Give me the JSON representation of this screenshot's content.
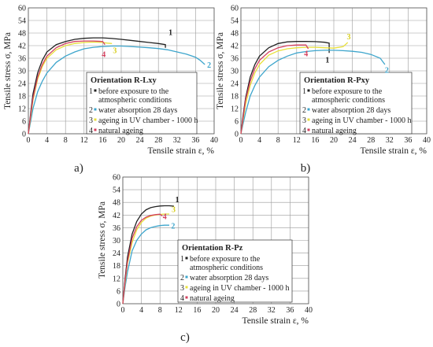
{
  "chart_data": [
    {
      "type": "line",
      "panel_label": "a)",
      "xlabel": "Tensile strain ε, %",
      "ylabel": "Tensile stress σ, MPa",
      "xlim": [
        0,
        40
      ],
      "ylim": [
        0,
        60
      ],
      "x_ticks": [
        0,
        4,
        8,
        12,
        16,
        20,
        24,
        28,
        32,
        36,
        40
      ],
      "y_ticks": [
        0,
        6,
        12,
        18,
        24,
        30,
        36,
        42,
        48,
        54,
        60
      ],
      "grid": true,
      "legend_title": "Orientation R-Lxy",
      "legend": [
        {
          "number": "1",
          "text": [
            "before exposure to the",
            "atmospheric conditions"
          ]
        },
        {
          "number": "2",
          "text": [
            "water absorption 28 days"
          ]
        },
        {
          "number": "3",
          "text": [
            "ageing in UV chamber - 1000 h"
          ]
        },
        {
          "number": "4",
          "text": [
            "natural ageing"
          ]
        }
      ],
      "series": [
        {
          "label": "1",
          "color": "#222222",
          "x": [
            0,
            0.5,
            1,
            2,
            3,
            4,
            6,
            8,
            10,
            12,
            14,
            16,
            18,
            20,
            22,
            24,
            26,
            28,
            29.5,
            29.5
          ],
          "y": [
            0,
            10,
            19,
            29,
            35,
            39,
            42.5,
            44,
            45,
            45.5,
            45.7,
            45.7,
            45.4,
            45,
            44.5,
            44,
            43.5,
            43,
            42.5,
            41
          ]
        },
        {
          "label": "2",
          "color": "#3da5cc",
          "x": [
            0,
            0.5,
            1,
            2,
            3,
            4,
            6,
            8,
            10,
            12,
            14,
            16,
            18,
            20,
            22,
            24,
            26,
            28,
            30,
            32,
            34,
            36,
            37,
            38
          ],
          "y": [
            0,
            6,
            12,
            20,
            25,
            29,
            34,
            37,
            39,
            40.5,
            41.2,
            41.6,
            41.8,
            41.8,
            41.6,
            41.3,
            41,
            40.6,
            40,
            39,
            38,
            36.5,
            35,
            33
          ]
        },
        {
          "label": "3",
          "color": "#e8e03a",
          "x": [
            0,
            0.5,
            1,
            2,
            3,
            4,
            6,
            8,
            10,
            12,
            14,
            16,
            17,
            18
          ],
          "y": [
            0,
            8,
            16,
            26,
            32,
            36,
            40,
            42,
            43,
            43.5,
            43.7,
            43.5,
            43.2,
            43
          ]
        },
        {
          "label": "4",
          "color": "#d4405e",
          "x": [
            0,
            0.5,
            1,
            2,
            3,
            4,
            6,
            8,
            10,
            12,
            14,
            16,
            16.5
          ],
          "y": [
            0,
            9,
            17,
            27,
            33,
            37,
            41,
            43,
            44,
            44.2,
            44.2,
            44,
            42.5
          ]
        }
      ]
    },
    {
      "type": "line",
      "panel_label": "b)",
      "xlabel": "Tensile strain ε, %",
      "ylabel": "Tensile stress σ, MPa",
      "xlim": [
        0,
        40
      ],
      "ylim": [
        0,
        60
      ],
      "x_ticks": [
        0,
        4,
        8,
        12,
        16,
        20,
        24,
        28,
        32,
        36,
        40
      ],
      "y_ticks": [
        0,
        6,
        12,
        18,
        24,
        30,
        36,
        42,
        48,
        54,
        60
      ],
      "grid": true,
      "legend_title": "Orientation R-Pxy",
      "legend": [
        {
          "number": "1",
          "text": [
            "before exposure to the",
            "atmospheric conditions"
          ]
        },
        {
          "number": "2",
          "text": [
            "water absorption 28 days"
          ]
        },
        {
          "number": "3",
          "text": [
            "ageing in UV chamber - 1000 h"
          ]
        },
        {
          "number": "4",
          "text": [
            "natural ageing"
          ]
        }
      ],
      "series": [
        {
          "label": "1",
          "color": "#222222",
          "x": [
            0,
            0.5,
            1,
            2,
            3,
            4,
            6,
            8,
            10,
            12,
            14,
            16,
            18,
            19,
            19
          ],
          "y": [
            0,
            9,
            17,
            27,
            33,
            37,
            41,
            43,
            43.8,
            44,
            44,
            43.9,
            43.6,
            43.2,
            38.5
          ]
        },
        {
          "label": "2",
          "color": "#3da5cc",
          "x": [
            0,
            0.5,
            1,
            2,
            3,
            4,
            6,
            8,
            10,
            12,
            14,
            16,
            18,
            20,
            22,
            24,
            26,
            28,
            30,
            31
          ],
          "y": [
            0,
            5,
            10,
            18,
            23,
            27,
            32,
            35,
            37,
            38.5,
            39.2,
            39.6,
            39.8,
            39.8,
            39.6,
            39.3,
            38.8,
            37.8,
            36,
            33
          ]
        },
        {
          "label": "3",
          "color": "#e8e03a",
          "x": [
            0,
            0.5,
            1,
            2,
            3,
            4,
            6,
            8,
            10,
            12,
            14,
            16,
            18,
            20,
            22,
            23
          ],
          "y": [
            0,
            7,
            14,
            23,
            29,
            33,
            37.5,
            39.5,
            40.5,
            41,
            41.2,
            41.2,
            41,
            40.8,
            41.5,
            43.5
          ]
        },
        {
          "label": "4",
          "color": "#d4405e",
          "x": [
            0,
            0.5,
            1,
            2,
            3,
            4,
            6,
            8,
            10,
            12,
            14,
            14.5
          ],
          "y": [
            0,
            8,
            16,
            25,
            31,
            35,
            39,
            41,
            42,
            42.3,
            42.3,
            40.5
          ]
        }
      ]
    },
    {
      "type": "line",
      "panel_label": "c)",
      "xlabel": "Tensile strain ε, %",
      "ylabel": "Tensile stress σ, MPa",
      "xlim": [
        0,
        40
      ],
      "ylim": [
        0,
        60
      ],
      "x_ticks": [
        0,
        4,
        8,
        12,
        16,
        20,
        24,
        28,
        32,
        36,
        40
      ],
      "y_ticks": [
        0,
        6,
        12,
        18,
        24,
        30,
        36,
        42,
        48,
        54,
        60
      ],
      "grid": true,
      "legend_title": "Orientation R-Pz",
      "legend": [
        {
          "number": "1",
          "text": [
            "before exposure to the",
            "atmospheric conditions"
          ]
        },
        {
          "number": "2",
          "text": [
            "water absorption 28 days"
          ]
        },
        {
          "number": "3",
          "text": [
            "ageing in UV chamber - 1000 h"
          ]
        },
        {
          "number": "4",
          "text": [
            "natural ageing"
          ]
        }
      ],
      "series": [
        {
          "label": "1",
          "color": "#222222",
          "x": [
            0,
            0.5,
            1,
            2,
            3,
            4,
            5,
            6,
            7,
            8,
            9,
            10,
            11
          ],
          "y": [
            0,
            12,
            22,
            33,
            39,
            42.5,
            44.5,
            45.5,
            46,
            46.3,
            46.4,
            46.4,
            46.2
          ]
        },
        {
          "label": "2",
          "color": "#3da5cc",
          "x": [
            0,
            0.5,
            1,
            2,
            3,
            4,
            5,
            6,
            7,
            8,
            9,
            10
          ],
          "y": [
            0,
            8,
            15,
            25,
            30,
            33,
            35,
            36,
            36.6,
            37,
            37.2,
            37.2
          ]
        },
        {
          "label": "3",
          "color": "#e8e03a",
          "x": [
            0,
            0.5,
            1,
            2,
            3,
            4,
            5,
            6,
            7,
            8,
            9,
            10
          ],
          "y": [
            0,
            10,
            19,
            29,
            35,
            38.5,
            40.5,
            41.5,
            42,
            42.3,
            42.5,
            42.5
          ]
        },
        {
          "label": "4",
          "color": "#d4405e",
          "x": [
            0,
            0.5,
            1,
            2,
            3,
            4,
            5,
            6,
            7,
            8,
            8.5
          ],
          "y": [
            0,
            11,
            20,
            31,
            36.5,
            39.5,
            41,
            41.8,
            42.2,
            42.4,
            41.5
          ]
        }
      ]
    }
  ]
}
